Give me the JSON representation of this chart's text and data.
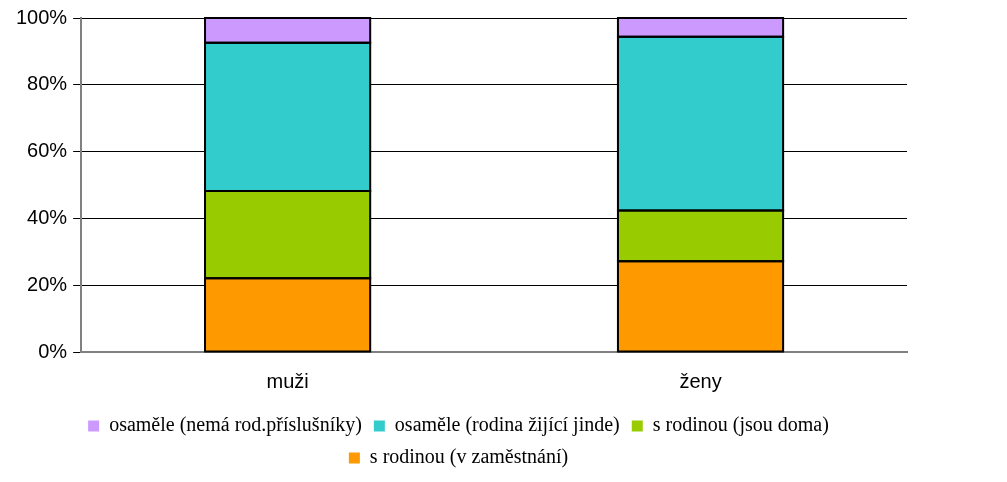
{
  "chart_data": {
    "type": "bar",
    "stacked": true,
    "categories": [
      "muži",
      "ženy"
    ],
    "series": [
      {
        "name": "s rodinou (v zaměstnání)",
        "color": "#ff9900",
        "values": [
          22.1,
          27.2
        ]
      },
      {
        "name": "s rodinou (jsou doma)",
        "color": "#99cc00",
        "values": [
          26.1,
          15.2
        ]
      },
      {
        "name": "osaměle (rodina žijící jinde)",
        "color": "#33cccc",
        "values": [
          44.4,
          52.0
        ]
      },
      {
        "name": "osaměle (nemá rod.příslušníky)",
        "color": "#cc99ff",
        "values": [
          7.4,
          5.6
        ]
      }
    ],
    "ylim": [
      0,
      100
    ],
    "yticks": [
      {
        "value": 0,
        "label": "0%"
      },
      {
        "value": 20,
        "label": "20%"
      },
      {
        "value": 40,
        "label": "40%"
      },
      {
        "value": 60,
        "label": "60%"
      },
      {
        "value": 80,
        "label": "80%"
      },
      {
        "value": 100,
        "label": "100%"
      }
    ],
    "grid": "y",
    "legend": "bottom"
  }
}
